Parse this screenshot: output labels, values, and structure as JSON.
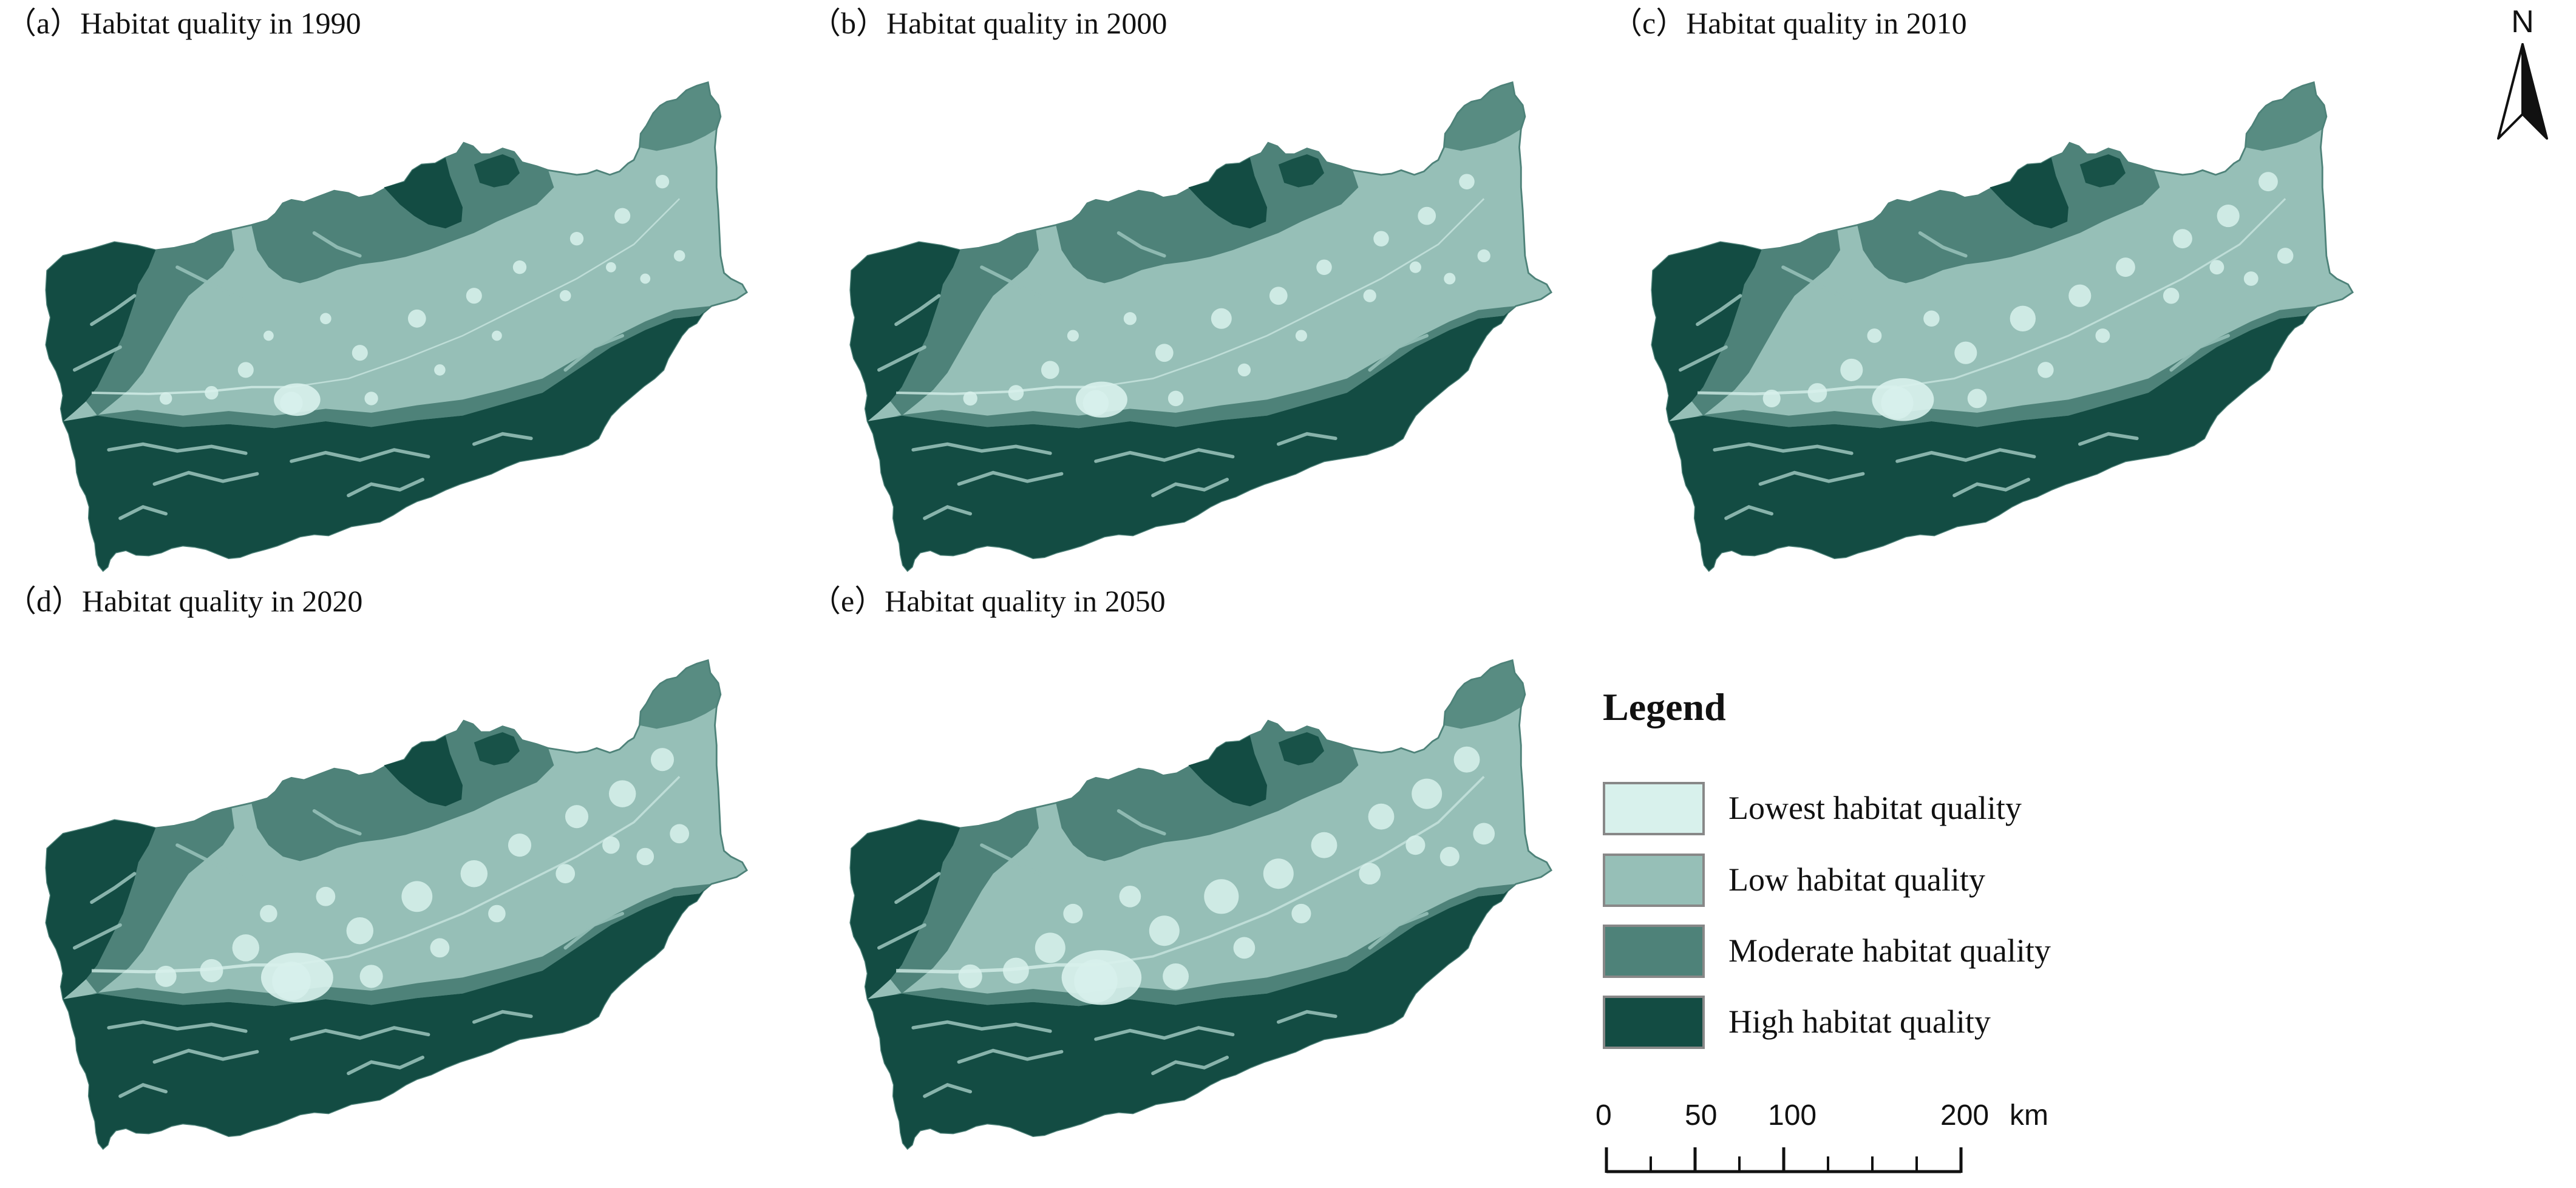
{
  "panels": [
    {
      "title": "（a）Habitat quality in 1990",
      "year": "1990",
      "urban_extent": 0.35
    },
    {
      "title": "（b）Habitat quality in 2000",
      "year": "2000",
      "urban_extent": 0.45
    },
    {
      "title": "（c）Habitat quality in 2010",
      "year": "2010",
      "urban_extent": 0.65
    },
    {
      "title": "（d）Habitat quality in 2020",
      "year": "2020",
      "urban_extent": 0.85
    },
    {
      "title": "（e）Habitat quality in 2050",
      "year": "2050",
      "urban_extent": 1.0
    }
  ],
  "north_arrow": {
    "letter": "N"
  },
  "legend": {
    "title": "Legend",
    "items": [
      {
        "label": "Lowest habitat quality",
        "color": "#d8f1ec"
      },
      {
        "label": "Low habitat quality",
        "color": "#96bfb7"
      },
      {
        "label": "Moderate habitat quality",
        "color": "#4e8279"
      },
      {
        "label": "High habitat quality",
        "color": "#134c43"
      }
    ]
  },
  "scale_bar": {
    "ticks": [
      "0",
      "50",
      "100",
      "200"
    ],
    "unit": "km"
  }
}
